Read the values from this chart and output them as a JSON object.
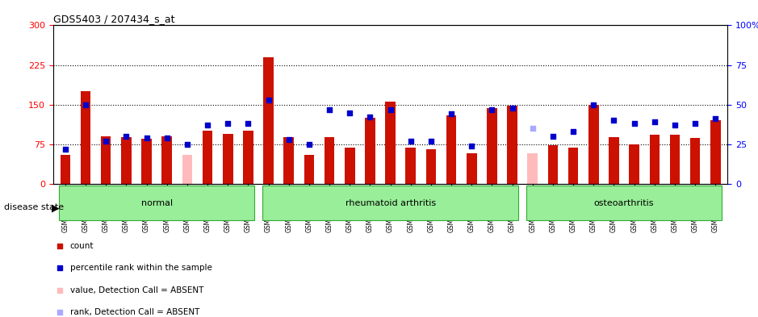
{
  "title": "GDS5403 / 207434_s_at",
  "samples": [
    "GSM1337304",
    "GSM1337305",
    "GSM1337306",
    "GSM1337307",
    "GSM1337308",
    "GSM1337309",
    "GSM1337310",
    "GSM1337311",
    "GSM1337312",
    "GSM1337313",
    "GSM1337314",
    "GSM1337315",
    "GSM1337316",
    "GSM1337317",
    "GSM1337318",
    "GSM1337319",
    "GSM1337320",
    "GSM1337321",
    "GSM1337322",
    "GSM1337323",
    "GSM1337324",
    "GSM1337325",
    "GSM1337326",
    "GSM1337327",
    "GSM1337328",
    "GSM1337329",
    "GSM1337330",
    "GSM1337331",
    "GSM1337332",
    "GSM1337333",
    "GSM1337334",
    "GSM1337335",
    "GSM1337336"
  ],
  "counts": [
    55,
    175,
    90,
    88,
    85,
    90,
    55,
    100,
    95,
    100,
    240,
    88,
    55,
    88,
    68,
    125,
    155,
    68,
    65,
    130,
    58,
    143,
    148,
    58,
    73,
    68,
    150,
    88,
    75,
    93,
    93,
    87,
    120
  ],
  "absent_count": [
    null,
    null,
    null,
    null,
    null,
    null,
    55,
    null,
    null,
    null,
    null,
    null,
    null,
    null,
    null,
    null,
    null,
    null,
    null,
    null,
    null,
    null,
    null,
    58,
    null,
    null,
    null,
    null,
    null,
    null,
    null,
    null,
    null
  ],
  "ranks": [
    22,
    50,
    27,
    30,
    29,
    29,
    25,
    37,
    38,
    38,
    53,
    28,
    25,
    47,
    45,
    42,
    47,
    27,
    27,
    44,
    24,
    47,
    48,
    35,
    30,
    33,
    50,
    40,
    38,
    39,
    37,
    38,
    41
  ],
  "absent_rank": [
    null,
    null,
    null,
    null,
    null,
    null,
    null,
    null,
    null,
    null,
    null,
    null,
    null,
    null,
    null,
    null,
    null,
    null,
    null,
    null,
    null,
    null,
    null,
    35,
    null,
    null,
    null,
    null,
    null,
    null,
    null,
    null,
    null
  ],
  "disease_groups": [
    {
      "label": "normal",
      "start": 0,
      "end": 10
    },
    {
      "label": "rheumatoid arthritis",
      "start": 10,
      "end": 23
    },
    {
      "label": "osteoarthritis",
      "start": 23,
      "end": 33
    }
  ],
  "bar_color": "#cc1100",
  "absent_bar_color": "#ffbbbb",
  "rank_color": "#0000cc",
  "absent_rank_color": "#aaaaff",
  "ylim_left": [
    0,
    300
  ],
  "ylim_right": [
    0,
    100
  ],
  "yticks_left": [
    0,
    75,
    150,
    225,
    300
  ],
  "yticks_right": [
    0,
    25,
    50,
    75,
    100
  ],
  "hlines": [
    75,
    150,
    225
  ],
  "group_color": "#99ee99",
  "group_border_color": "#33aa33"
}
